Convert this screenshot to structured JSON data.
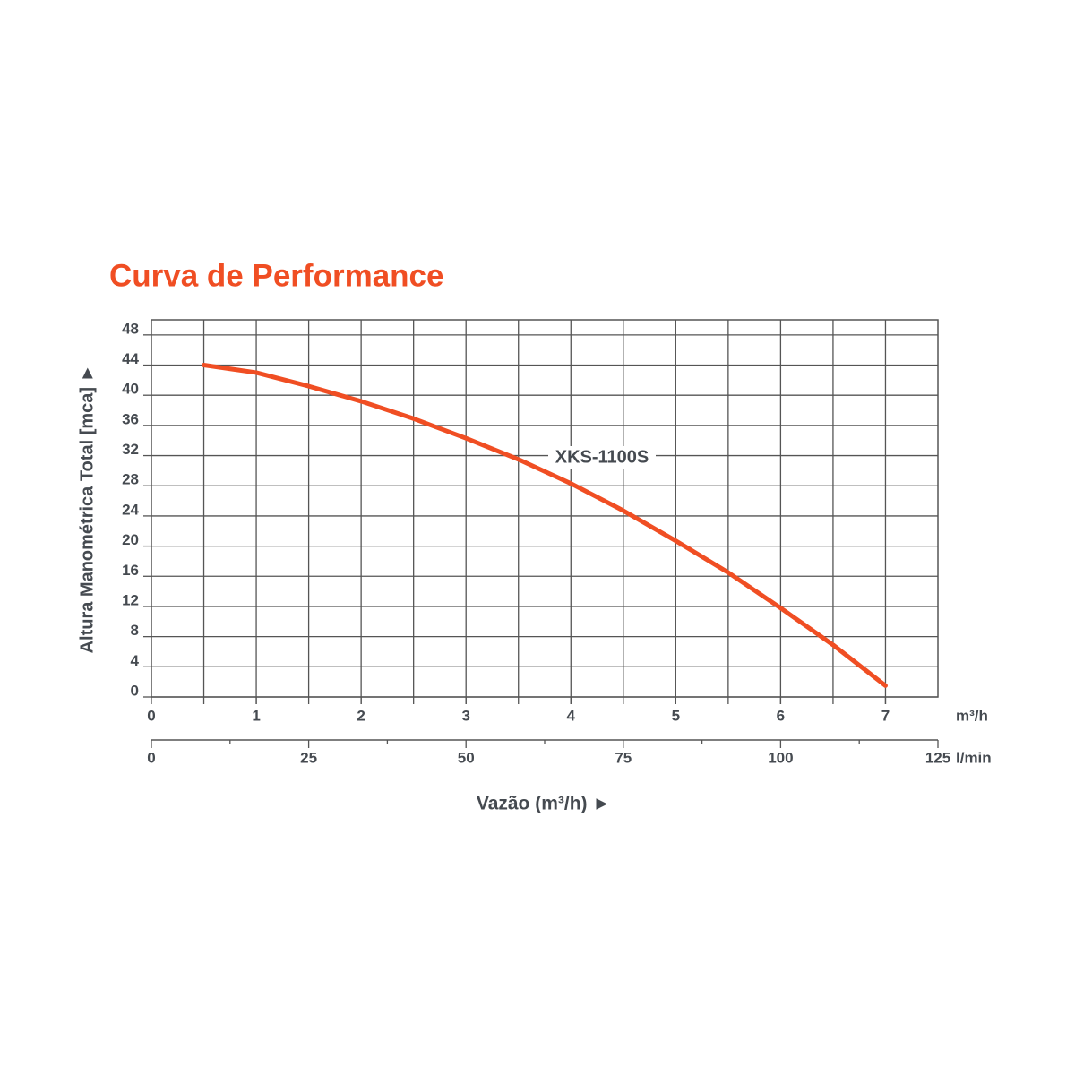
{
  "chart_data": {
    "type": "line",
    "title": "Curva de Performance",
    "ylabel": "Altura Manométrica Total [mca] ►",
    "xlabel": "Vazão (m³/h) ►",
    "x_unit": "m³/h",
    "x2_unit": "l/min",
    "xlim": [
      0,
      7.5
    ],
    "xticks": [
      0,
      1,
      2,
      3,
      4,
      5,
      6,
      7
    ],
    "xgrid": [
      0.5,
      1,
      1.5,
      2,
      2.5,
      3,
      3.5,
      4,
      4.5,
      5,
      5.5,
      6,
      6.5,
      7
    ],
    "x2lim": [
      0,
      125
    ],
    "x2ticks": [
      0,
      25,
      50,
      75,
      100,
      125
    ],
    "x2minor": [
      12.5,
      37.5,
      62.5,
      87.5,
      112.5
    ],
    "ylim": [
      0,
      50
    ],
    "yticks": [
      0,
      4,
      8,
      12,
      16,
      20,
      24,
      28,
      32,
      36,
      40,
      44,
      48
    ],
    "grid": true,
    "x": [
      0.5,
      1,
      1.5,
      2,
      2.5,
      3,
      3.5,
      4,
      4.5,
      5,
      5.5,
      6,
      6.5,
      7
    ],
    "series": [
      {
        "name": "XKS-1100S",
        "color": "#f04e23",
        "values": [
          44,
          43,
          41.2,
          39.2,
          36.9,
          34.3,
          31.5,
          28.3,
          24.7,
          20.7,
          16.5,
          11.8,
          6.9,
          1.5
        ]
      }
    ]
  }
}
